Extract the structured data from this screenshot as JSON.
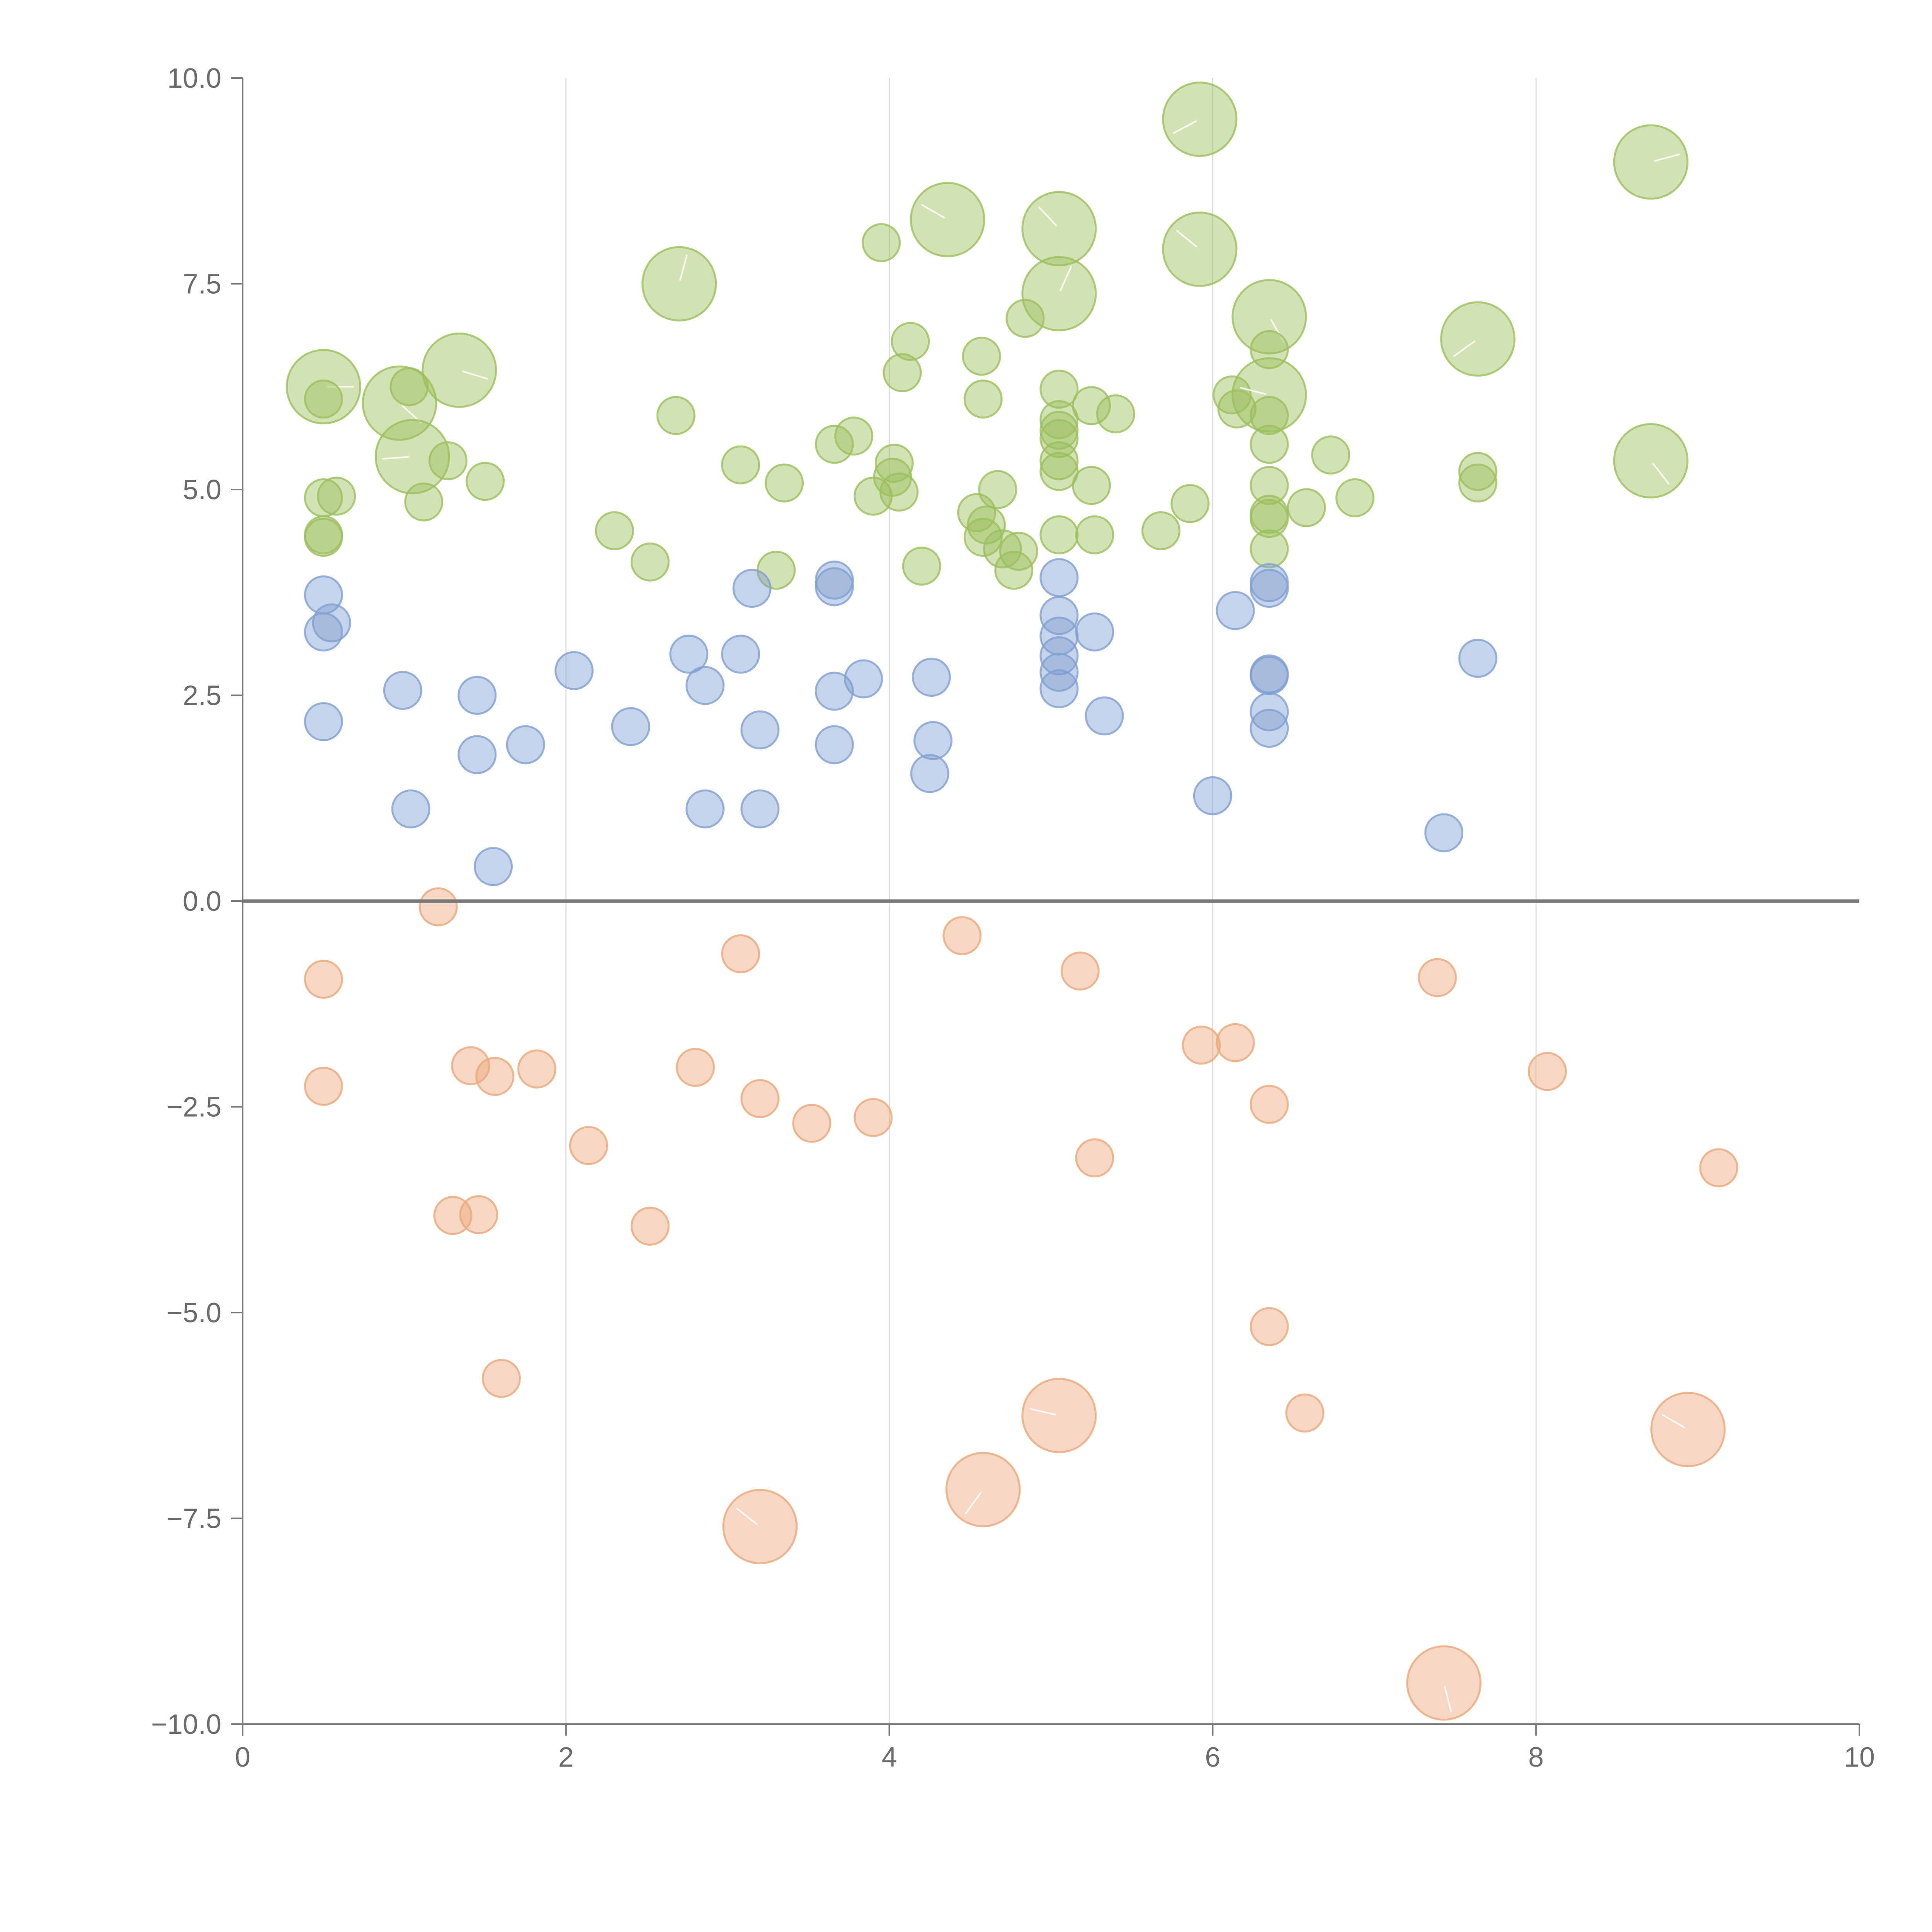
{
  "chart_data": {
    "type": "scatter",
    "title": "",
    "xlabel": "",
    "ylabel": "",
    "xlim": [
      0,
      10
    ],
    "ylim": [
      -10,
      10
    ],
    "x_ticks": [
      0,
      2,
      4,
      6,
      8,
      10
    ],
    "x_tick_labels": [
      "0",
      "2",
      "4",
      "6",
      "8",
      "10"
    ],
    "y_ticks": [
      10,
      7.5,
      5,
      2.5,
      0,
      -2.5,
      -5,
      -7.5,
      -10
    ],
    "y_tick_labels": [
      "10.0",
      "7.5",
      "5.0",
      "2.5",
      "0.0",
      "−2.5",
      "−5.0",
      "−7.5",
      "−10.0"
    ],
    "vertical_grid_x": [
      2,
      4,
      6,
      8
    ],
    "baseline_y": 0,
    "size_unit_note": "bubble size in relative units (1 = small, 2 = large)",
    "series": [
      {
        "name": "green",
        "color": "#9bbf5c",
        "points": [
          {
            "x": 0.5,
            "y": 6.25,
            "s": 2
          },
          {
            "x": 0.5,
            "y": 6.1,
            "s": 1
          },
          {
            "x": 0.5,
            "y": 4.9,
            "s": 1
          },
          {
            "x": 0.58,
            "y": 4.92,
            "s": 1
          },
          {
            "x": 0.5,
            "y": 4.45,
            "s": 1
          },
          {
            "x": 0.5,
            "y": 4.42,
            "s": 1
          },
          {
            "x": 0.97,
            "y": 6.05,
            "s": 2
          },
          {
            "x": 1.03,
            "y": 6.25,
            "s": 1
          },
          {
            "x": 1.05,
            "y": 5.4,
            "s": 2
          },
          {
            "x": 1.12,
            "y": 4.85,
            "s": 1
          },
          {
            "x": 1.27,
            "y": 5.35,
            "s": 1
          },
          {
            "x": 1.34,
            "y": 6.45,
            "s": 2
          },
          {
            "x": 1.5,
            "y": 5.1,
            "s": 1
          },
          {
            "x": 2.3,
            "y": 4.5,
            "s": 1
          },
          {
            "x": 2.52,
            "y": 4.12,
            "s": 1
          },
          {
            "x": 2.7,
            "y": 7.5,
            "s": 2
          },
          {
            "x": 2.68,
            "y": 5.9,
            "s": 1
          },
          {
            "x": 3.08,
            "y": 5.3,
            "s": 1
          },
          {
            "x": 3.3,
            "y": 4.02,
            "s": 1
          },
          {
            "x": 3.35,
            "y": 5.08,
            "s": 1
          },
          {
            "x": 3.66,
            "y": 5.55,
            "s": 1
          },
          {
            "x": 3.78,
            "y": 5.65,
            "s": 1
          },
          {
            "x": 3.9,
            "y": 4.92,
            "s": 1
          },
          {
            "x": 3.95,
            "y": 8.0,
            "s": 1
          },
          {
            "x": 4.02,
            "y": 5.15,
            "s": 1
          },
          {
            "x": 4.03,
            "y": 5.32,
            "s": 1
          },
          {
            "x": 4.06,
            "y": 4.97,
            "s": 1
          },
          {
            "x": 4.08,
            "y": 6.42,
            "s": 1
          },
          {
            "x": 4.13,
            "y": 6.8,
            "s": 1
          },
          {
            "x": 4.2,
            "y": 4.07,
            "s": 1
          },
          {
            "x": 4.36,
            "y": 8.28,
            "s": 2
          },
          {
            "x": 4.54,
            "y": 4.72,
            "s": 1
          },
          {
            "x": 4.57,
            "y": 6.62,
            "s": 1
          },
          {
            "x": 4.58,
            "y": 6.1,
            "s": 1
          },
          {
            "x": 4.58,
            "y": 4.42,
            "s": 1
          },
          {
            "x": 4.6,
            "y": 4.57,
            "s": 1
          },
          {
            "x": 4.67,
            "y": 5.0,
            "s": 1
          },
          {
            "x": 4.7,
            "y": 4.28,
            "s": 1
          },
          {
            "x": 4.77,
            "y": 4.02,
            "s": 1
          },
          {
            "x": 4.8,
            "y": 4.25,
            "s": 1
          },
          {
            "x": 4.84,
            "y": 7.08,
            "s": 1
          },
          {
            "x": 5.05,
            "y": 8.17,
            "s": 2
          },
          {
            "x": 5.05,
            "y": 7.38,
            "s": 2
          },
          {
            "x": 5.05,
            "y": 6.22,
            "s": 1
          },
          {
            "x": 5.05,
            "y": 5.85,
            "s": 1
          },
          {
            "x": 5.05,
            "y": 5.72,
            "s": 1
          },
          {
            "x": 5.05,
            "y": 5.62,
            "s": 1
          },
          {
            "x": 5.05,
            "y": 5.35,
            "s": 1
          },
          {
            "x": 5.05,
            "y": 5.22,
            "s": 1
          },
          {
            "x": 5.05,
            "y": 4.45,
            "s": 1
          },
          {
            "x": 5.25,
            "y": 6.02,
            "s": 1
          },
          {
            "x": 5.25,
            "y": 5.05,
            "s": 1
          },
          {
            "x": 5.27,
            "y": 4.45,
            "s": 1
          },
          {
            "x": 5.4,
            "y": 5.92,
            "s": 1
          },
          {
            "x": 5.68,
            "y": 4.5,
            "s": 1
          },
          {
            "x": 5.86,
            "y": 4.83,
            "s": 1
          },
          {
            "x": 5.92,
            "y": 9.5,
            "s": 2
          },
          {
            "x": 5.92,
            "y": 7.92,
            "s": 2
          },
          {
            "x": 6.12,
            "y": 6.15,
            "s": 1
          },
          {
            "x": 6.15,
            "y": 5.98,
            "s": 1
          },
          {
            "x": 6.35,
            "y": 7.1,
            "s": 2
          },
          {
            "x": 6.35,
            "y": 6.7,
            "s": 1
          },
          {
            "x": 6.35,
            "y": 6.15,
            "s": 2
          },
          {
            "x": 6.35,
            "y": 5.9,
            "s": 1
          },
          {
            "x": 6.35,
            "y": 5.55,
            "s": 1
          },
          {
            "x": 6.35,
            "y": 5.05,
            "s": 1
          },
          {
            "x": 6.35,
            "y": 4.7,
            "s": 1
          },
          {
            "x": 6.35,
            "y": 4.65,
            "s": 1
          },
          {
            "x": 6.35,
            "y": 4.28,
            "s": 1
          },
          {
            "x": 6.58,
            "y": 4.78,
            "s": 1
          },
          {
            "x": 6.73,
            "y": 5.42,
            "s": 1
          },
          {
            "x": 6.88,
            "y": 4.9,
            "s": 1
          },
          {
            "x": 7.64,
            "y": 6.83,
            "s": 2
          },
          {
            "x": 7.64,
            "y": 5.22,
            "s": 1
          },
          {
            "x": 7.64,
            "y": 5.08,
            "s": 1
          },
          {
            "x": 8.71,
            "y": 8.98,
            "s": 2
          },
          {
            "x": 8.71,
            "y": 5.35,
            "s": 2
          }
        ]
      },
      {
        "name": "blue",
        "color": "#7f9fd1",
        "points": [
          {
            "x": 0.5,
            "y": 3.72,
            "s": 1
          },
          {
            "x": 0.55,
            "y": 3.38,
            "s": 1
          },
          {
            "x": 0.5,
            "y": 3.27,
            "s": 1
          },
          {
            "x": 0.5,
            "y": 2.18,
            "s": 1
          },
          {
            "x": 0.99,
            "y": 2.56,
            "s": 1
          },
          {
            "x": 1.04,
            "y": 1.12,
            "s": 1
          },
          {
            "x": 1.45,
            "y": 2.5,
            "s": 1
          },
          {
            "x": 1.45,
            "y": 1.78,
            "s": 1
          },
          {
            "x": 1.55,
            "y": 0.42,
            "s": 1
          },
          {
            "x": 1.75,
            "y": 1.9,
            "s": 1
          },
          {
            "x": 2.05,
            "y": 2.8,
            "s": 1
          },
          {
            "x": 2.4,
            "y": 2.12,
            "s": 1
          },
          {
            "x": 2.76,
            "y": 3.0,
            "s": 1
          },
          {
            "x": 2.86,
            "y": 2.62,
            "s": 1
          },
          {
            "x": 2.86,
            "y": 1.12,
            "s": 1
          },
          {
            "x": 3.08,
            "y": 3.0,
            "s": 1
          },
          {
            "x": 3.15,
            "y": 3.8,
            "s": 1
          },
          {
            "x": 3.2,
            "y": 2.08,
            "s": 1
          },
          {
            "x": 3.2,
            "y": 1.12,
            "s": 1
          },
          {
            "x": 3.66,
            "y": 3.9,
            "s": 1
          },
          {
            "x": 3.66,
            "y": 3.82,
            "s": 1
          },
          {
            "x": 3.66,
            "y": 2.55,
            "s": 1
          },
          {
            "x": 3.66,
            "y": 1.9,
            "s": 1
          },
          {
            "x": 3.84,
            "y": 2.7,
            "s": 1
          },
          {
            "x": 4.26,
            "y": 2.72,
            "s": 1
          },
          {
            "x": 4.27,
            "y": 1.95,
            "s": 1
          },
          {
            "x": 4.25,
            "y": 1.55,
            "s": 1
          },
          {
            "x": 5.05,
            "y": 3.93,
            "s": 1
          },
          {
            "x": 5.05,
            "y": 3.47,
            "s": 1
          },
          {
            "x": 5.05,
            "y": 3.22,
            "s": 1
          },
          {
            "x": 5.05,
            "y": 2.98,
            "s": 1
          },
          {
            "x": 5.05,
            "y": 2.78,
            "s": 1
          },
          {
            "x": 5.05,
            "y": 2.58,
            "s": 1
          },
          {
            "x": 5.27,
            "y": 3.27,
            "s": 1
          },
          {
            "x": 5.33,
            "y": 2.25,
            "s": 1
          },
          {
            "x": 6.0,
            "y": 1.28,
            "s": 1
          },
          {
            "x": 6.14,
            "y": 3.53,
            "s": 1
          },
          {
            "x": 6.35,
            "y": 3.87,
            "s": 1
          },
          {
            "x": 6.35,
            "y": 3.8,
            "s": 1
          },
          {
            "x": 6.35,
            "y": 2.76,
            "s": 1
          },
          {
            "x": 6.35,
            "y": 2.74,
            "s": 1
          },
          {
            "x": 6.35,
            "y": 2.3,
            "s": 1
          },
          {
            "x": 6.35,
            "y": 2.1,
            "s": 1
          },
          {
            "x": 7.43,
            "y": 0.83,
            "s": 1
          },
          {
            "x": 7.64,
            "y": 2.95,
            "s": 1
          }
        ]
      },
      {
        "name": "orange",
        "color": "#eaa77a",
        "points": [
          {
            "x": 0.5,
            "y": -0.95,
            "s": 1
          },
          {
            "x": 0.5,
            "y": -2.25,
            "s": 1
          },
          {
            "x": 1.21,
            "y": -0.07,
            "s": 1
          },
          {
            "x": 1.41,
            "y": -2.0,
            "s": 1
          },
          {
            "x": 1.56,
            "y": -2.13,
            "s": 1
          },
          {
            "x": 1.82,
            "y": -2.04,
            "s": 1
          },
          {
            "x": 1.3,
            "y": -3.82,
            "s": 1
          },
          {
            "x": 1.46,
            "y": -3.81,
            "s": 1
          },
          {
            "x": 1.6,
            "y": -5.8,
            "s": 1
          },
          {
            "x": 2.14,
            "y": -2.97,
            "s": 1
          },
          {
            "x": 2.52,
            "y": -3.95,
            "s": 1
          },
          {
            "x": 2.8,
            "y": -2.02,
            "s": 1
          },
          {
            "x": 3.08,
            "y": -0.64,
            "s": 1
          },
          {
            "x": 3.2,
            "y": -2.4,
            "s": 1
          },
          {
            "x": 3.2,
            "y": -7.6,
            "s": 2
          },
          {
            "x": 3.52,
            "y": -2.7,
            "s": 1
          },
          {
            "x": 3.9,
            "y": -2.63,
            "s": 1
          },
          {
            "x": 4.45,
            "y": -0.42,
            "s": 1
          },
          {
            "x": 4.58,
            "y": -7.15,
            "s": 2
          },
          {
            "x": 5.05,
            "y": -6.25,
            "s": 2
          },
          {
            "x": 5.18,
            "y": -0.85,
            "s": 1
          },
          {
            "x": 5.27,
            "y": -3.12,
            "s": 1
          },
          {
            "x": 5.93,
            "y": -1.75,
            "s": 1
          },
          {
            "x": 6.14,
            "y": -1.72,
            "s": 1
          },
          {
            "x": 6.35,
            "y": -2.47,
            "s": 1
          },
          {
            "x": 6.35,
            "y": -5.17,
            "s": 1
          },
          {
            "x": 6.57,
            "y": -6.22,
            "s": 1
          },
          {
            "x": 7.39,
            "y": -0.93,
            "s": 1
          },
          {
            "x": 7.43,
            "y": -9.5,
            "s": 2
          },
          {
            "x": 8.07,
            "y": -2.07,
            "s": 1
          },
          {
            "x": 8.94,
            "y": -6.42,
            "s": 2
          },
          {
            "x": 9.13,
            "y": -3.24,
            "s": 1
          }
        ]
      }
    ]
  }
}
